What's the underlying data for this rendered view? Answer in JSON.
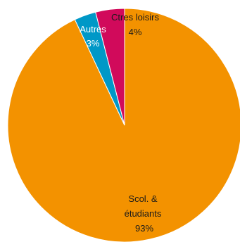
{
  "chart_data": {
    "type": "pie",
    "slices": [
      {
        "label": "Scol. & étudiants",
        "value": 93,
        "value_label": "93%",
        "color": "#F39200",
        "label_color": "#1a1a1a"
      },
      {
        "label": "Autres",
        "value": 3,
        "value_label": "3%",
        "color": "#0098C7",
        "label_color": "#ffffff"
      },
      {
        "label": "Ctres loisirs",
        "value": 4,
        "value_label": "4%",
        "color": "#D10A5B",
        "label_color": "#1a1a1a"
      }
    ],
    "start_angle_deg": 0,
    "direction": "clockwise",
    "legend": "none"
  }
}
